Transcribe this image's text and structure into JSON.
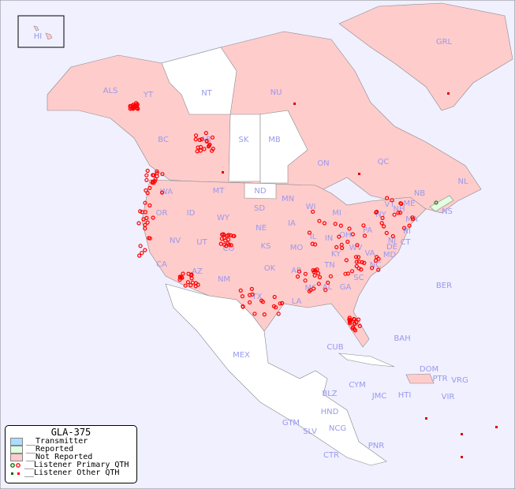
{
  "map": {
    "labels": [
      "HI",
      "ALS",
      "YT",
      "NT",
      "NU",
      "GRL",
      "BC",
      "AB",
      "SK",
      "MB",
      "ON",
      "QC",
      "NL",
      "NS",
      "NB",
      "ME",
      "WA",
      "MT",
      "ND",
      "MN",
      "OR",
      "ID",
      "WY",
      "SD",
      "WI",
      "MI",
      "NY",
      "VT",
      "NH",
      "MA",
      "RI",
      "CT",
      "NJ",
      "PA",
      "OH",
      "IN",
      "IL",
      "IA",
      "NE",
      "NV",
      "UT",
      "CO",
      "KS",
      "MO",
      "KY",
      "WV",
      "VA",
      "MD",
      "DE",
      "CA",
      "AZ",
      "NM",
      "OK",
      "AR",
      "TN",
      "NC",
      "SC",
      "MS",
      "AL",
      "GA",
      "TX",
      "LA",
      "FL",
      "MEX",
      "CUB",
      "BAH",
      "BER",
      "DOM",
      "PTR",
      "VRG",
      "CYM",
      "JMC",
      "HTI",
      "VIR",
      "BLZ",
      "HND",
      "GTM",
      "SLV",
      "NCG",
      "CTR",
      "PNR"
    ],
    "colors": {
      "background": "#f0f0ff",
      "not_reported": "#ffcccc",
      "reported": "#e0ffe0",
      "transmitter": "#aaddff",
      "primary_qth": "#ff0000",
      "other_qth": "#dd0000",
      "label": "#9999ee"
    }
  },
  "legend": {
    "title": "GLA-375",
    "items": [
      "__Transmitter",
      "__Reported",
      "__Not Reported",
      "__Listener Primary QTH",
      "__Listener Other QTH"
    ]
  }
}
